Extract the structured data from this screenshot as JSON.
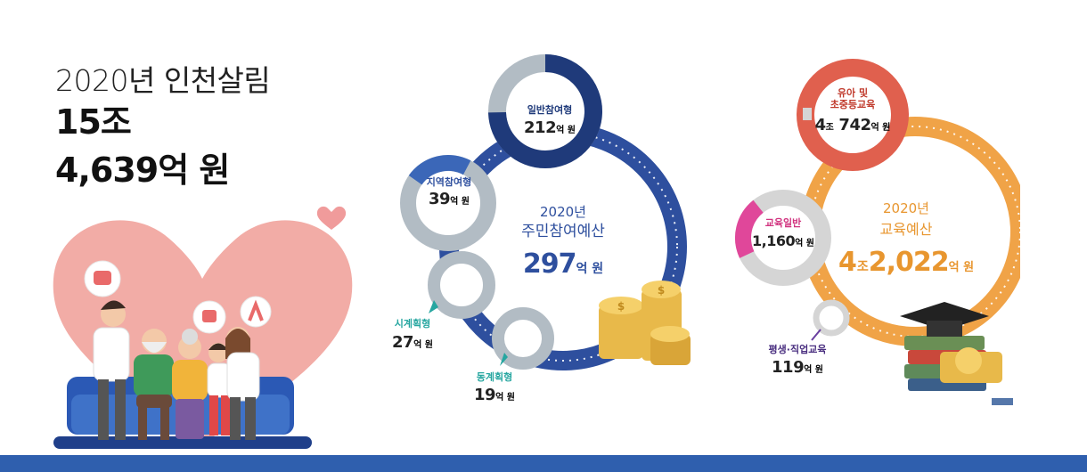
{
  "headline": {
    "year_title": "2020년 인천살림",
    "amount_line1": "15조",
    "amount_line2": "4,639억 원"
  },
  "colors": {
    "participation_blue": "#2e4f9e",
    "participation_navy": "#1f3a7a",
    "participation_gray": "#b2bcc4",
    "education_orange": "#f0a347",
    "education_red": "#e0604e",
    "education_pink": "#e0479a",
    "education_purple": "#6a3fa0",
    "teal": "#26a6a0",
    "bottom_bar": "#2f5fae"
  },
  "participation": {
    "center_year": "2020년",
    "center_title": "주민참여예산",
    "center_value": "297",
    "center_unit": "억 원",
    "segments": [
      {
        "name": "일반참여형",
        "value": "212",
        "unit": "억 원"
      },
      {
        "name": "지역참여형",
        "value": "39",
        "unit": "억 원"
      },
      {
        "name": "시계획형",
        "value": "27",
        "unit": "억 원"
      },
      {
        "name": "동계획형",
        "value": "19",
        "unit": "억 원"
      }
    ]
  },
  "education": {
    "center_year": "2020년",
    "center_title": "교육예산",
    "center_value_a": "4",
    "center_unit_a": "조",
    "center_value_b": "2,022",
    "center_unit_b": "억 원",
    "segments": [
      {
        "name_line1": "유아 및",
        "name_line2": "초중등교육",
        "value_a": "4",
        "unit_a": "조",
        "value_b": "742",
        "unit_b": "억 원"
      },
      {
        "name": "교육일반",
        "value": "1,160",
        "unit": "억 원"
      },
      {
        "name": "평생·직업교육",
        "value": "119",
        "unit": "억 원"
      }
    ]
  }
}
